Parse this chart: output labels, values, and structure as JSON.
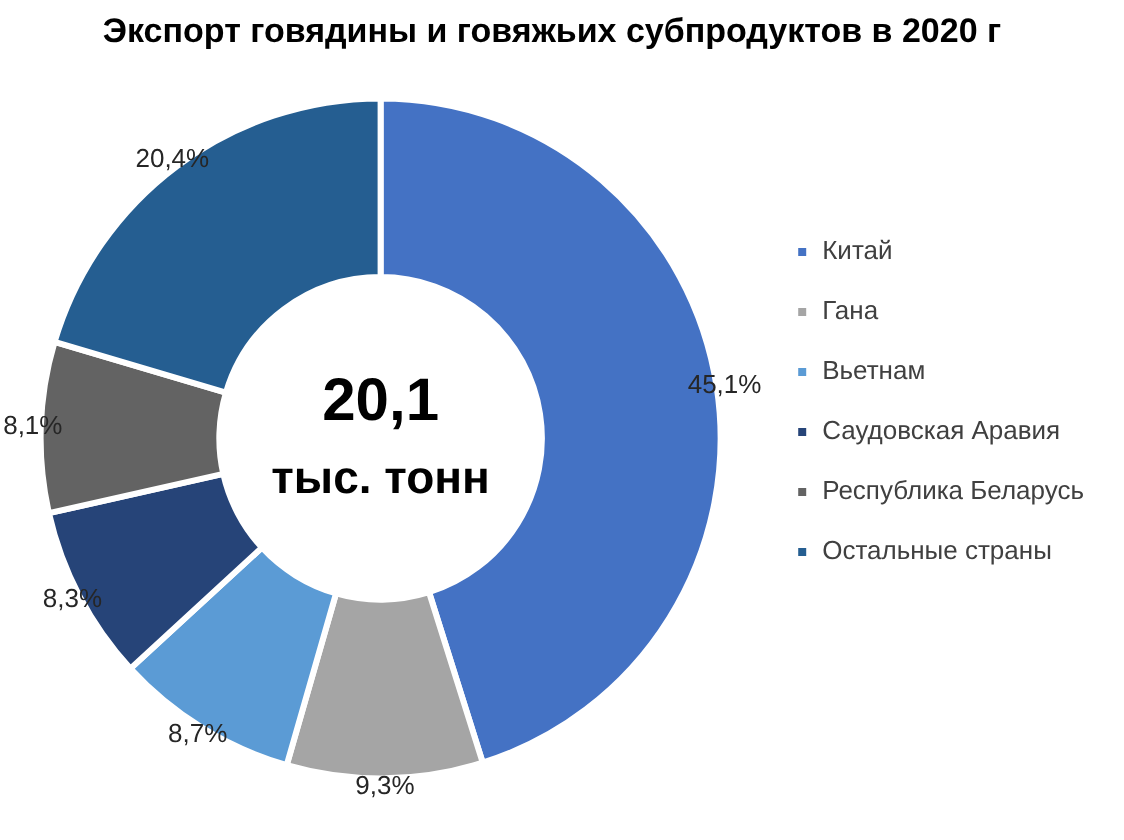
{
  "chart_data": {
    "type": "donut",
    "title": "Экспорт говядины и говяжьих субпродуктов в 2020 г",
    "categories": [
      "Китай",
      "Гана",
      "Вьетнам",
      "Саудовская Аравия",
      "Республика Беларусь",
      "Остальные страны"
    ],
    "values": [
      45.1,
      9.3,
      8.7,
      8.3,
      8.1,
      20.4
    ],
    "colors": [
      "#4472c4",
      "#a5a5a5",
      "#5b9bd5",
      "#264478",
      "#636363",
      "#255e91"
    ],
    "value_labels": [
      "45,1%",
      "9,3%",
      "8,7%",
      "8,3%",
      "8,1%",
      "20,4%"
    ],
    "annotations": [
      "20,1",
      "тыс. тонн"
    ],
    "legend": "right"
  }
}
